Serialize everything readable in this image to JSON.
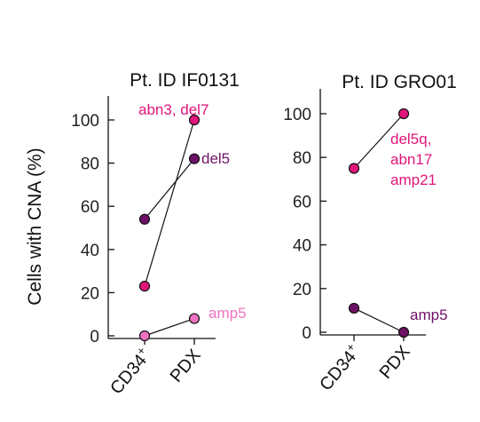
{
  "ylabel": "Cells with CNA (%)",
  "chart_data": [
    {
      "type": "line",
      "title": "Pt. ID IF0131",
      "categories": [
        "CD34⁺",
        "PDX"
      ],
      "ylabel": "Cells with CNA (%)",
      "ylim": [
        0,
        100
      ],
      "yticks": [
        0,
        20,
        40,
        60,
        80,
        100
      ],
      "series": [
        {
          "label": "abn3, del7",
          "values": [
            23,
            100
          ],
          "color": "#e0157a"
        },
        {
          "label": "del5",
          "values": [
            54,
            82
          ],
          "color": "#6e1166"
        },
        {
          "label": "amp5",
          "values": [
            0,
            8
          ],
          "color": "#ee72c2"
        }
      ]
    },
    {
      "type": "line",
      "title": "Pt. ID GRO01",
      "categories": [
        "CD34⁺",
        "PDX"
      ],
      "ylim": [
        0,
        100
      ],
      "yticks": [
        0,
        20,
        40,
        60,
        80,
        100
      ],
      "series": [
        {
          "label": "del5q,\nabn17\namp21",
          "values": [
            75,
            100
          ],
          "color": "#e0157a"
        },
        {
          "label": "amp5",
          "values": [
            11,
            0
          ],
          "color": "#6e1166"
        }
      ]
    }
  ]
}
